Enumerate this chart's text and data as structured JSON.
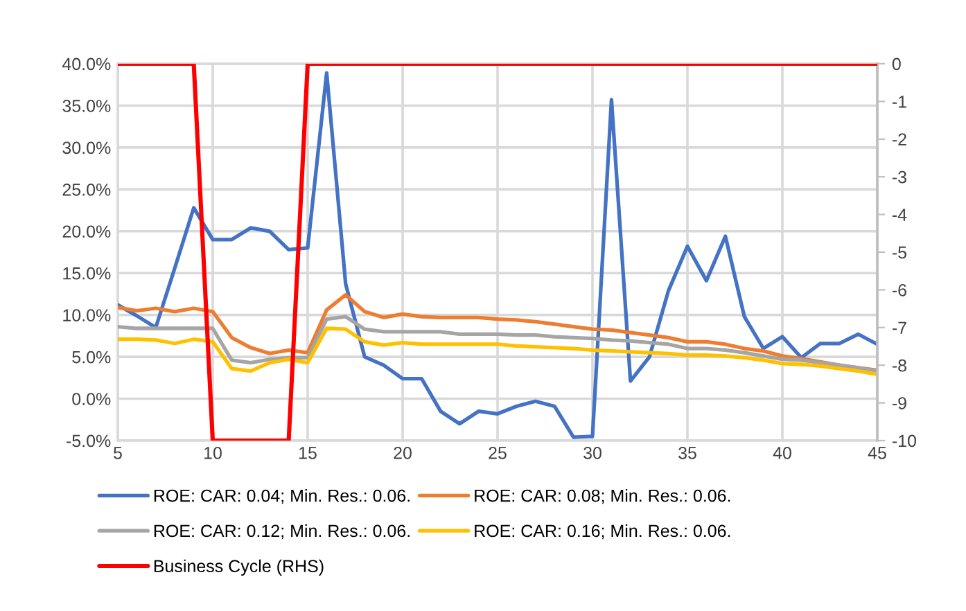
{
  "chart_data": {
    "type": "line",
    "x": [
      5,
      6,
      7,
      8,
      9,
      10,
      11,
      12,
      13,
      14,
      15,
      16,
      17,
      18,
      19,
      20,
      21,
      22,
      23,
      24,
      25,
      26,
      27,
      28,
      29,
      30,
      31,
      32,
      33,
      34,
      35,
      36,
      37,
      38,
      39,
      40,
      41,
      42,
      43,
      44,
      45
    ],
    "series": [
      {
        "name": "ROE: CAR: 0.04; Min. Res.: 0.06.",
        "color": "#4472c4",
        "values": [
          11.2,
          9.9,
          8.5,
          15.6,
          22.8,
          19.0,
          19.0,
          20.4,
          20.0,
          17.8,
          18.0,
          38.9,
          13.7,
          5.0,
          4.0,
          2.4,
          2.4,
          -1.5,
          -3.0,
          -1.5,
          -1.8,
          -0.9,
          -0.3,
          -0.9,
          -4.6,
          -4.5,
          35.7,
          2.1,
          5.0,
          12.9,
          18.2,
          14.1,
          19.4,
          9.8,
          6.0,
          7.4,
          4.9,
          6.6,
          6.6,
          7.7,
          6.5
        ]
      },
      {
        "name": "ROE: CAR: 0.08; Min. Res.: 0.06.",
        "color": "#ed7d31",
        "values": [
          10.9,
          10.5,
          10.8,
          10.4,
          10.8,
          10.4,
          7.3,
          6.1,
          5.4,
          5.8,
          5.5,
          10.6,
          12.4,
          10.4,
          9.7,
          10.1,
          9.8,
          9.7,
          9.7,
          9.7,
          9.5,
          9.4,
          9.2,
          8.9,
          8.6,
          8.3,
          8.2,
          7.9,
          7.6,
          7.3,
          6.8,
          6.8,
          6.5,
          6.0,
          5.7,
          5.1,
          4.8,
          4.4,
          4.0,
          3.7,
          3.4
        ]
      },
      {
        "name": "ROE: CAR: 0.12; Min. Res.: 0.06.",
        "color": "#a5a5a5",
        "values": [
          8.6,
          8.4,
          8.4,
          8.4,
          8.4,
          8.4,
          4.6,
          4.3,
          4.7,
          4.9,
          4.9,
          9.5,
          9.8,
          8.3,
          8.0,
          8.0,
          8.0,
          8.0,
          7.7,
          7.7,
          7.7,
          7.6,
          7.6,
          7.4,
          7.3,
          7.2,
          7.0,
          6.9,
          6.7,
          6.5,
          6.0,
          6.0,
          5.8,
          5.5,
          5.1,
          4.7,
          4.6,
          4.3,
          4.0,
          3.7,
          3.3
        ]
      },
      {
        "name": "ROE: CAR: 0.16; Min. Res.: 0.06.",
        "color": "#ffc000",
        "values": [
          7.1,
          7.1,
          7.0,
          6.6,
          7.1,
          6.8,
          3.6,
          3.3,
          4.3,
          4.7,
          4.3,
          8.4,
          8.3,
          6.8,
          6.4,
          6.7,
          6.5,
          6.5,
          6.5,
          6.5,
          6.5,
          6.3,
          6.2,
          6.1,
          6.0,
          5.8,
          5.7,
          5.6,
          5.5,
          5.4,
          5.2,
          5.2,
          5.1,
          4.9,
          4.6,
          4.2,
          4.1,
          3.9,
          3.6,
          3.3,
          2.9
        ]
      },
      {
        "name": "Business Cycle (RHS)",
        "color": "#ff0000",
        "axis": "y2",
        "values": [
          0,
          0,
          0,
          0,
          0,
          -10,
          -10,
          -10,
          -10,
          -10,
          0,
          0,
          0,
          0,
          0,
          0,
          0,
          0,
          0,
          0,
          0,
          0,
          0,
          0,
          0,
          0,
          0,
          0,
          0,
          0,
          0,
          0,
          0,
          0,
          0,
          0,
          0,
          0,
          0,
          0,
          0
        ]
      }
    ],
    "xlim": [
      5,
      45
    ],
    "xticks": [
      5,
      10,
      15,
      20,
      25,
      30,
      35,
      40,
      45
    ],
    "ylim": [
      -5,
      40
    ],
    "yticks": [
      {
        "value": -5,
        "label": "-5.0%"
      },
      {
        "value": 0,
        "label": "0.0%"
      },
      {
        "value": 5,
        "label": "5.0%"
      },
      {
        "value": 10,
        "label": "10.0%"
      },
      {
        "value": 15,
        "label": "15.0%"
      },
      {
        "value": 20,
        "label": "20.0%"
      },
      {
        "value": 25,
        "label": "25.0%"
      },
      {
        "value": 30,
        "label": "30.0%"
      },
      {
        "value": 35,
        "label": "35.0%"
      },
      {
        "value": 40,
        "label": "40.0%"
      }
    ],
    "y2lim": [
      -10,
      0
    ],
    "y2ticks": [
      -10,
      -9,
      -8,
      -7,
      -6,
      -5,
      -4,
      -3,
      -2,
      -1,
      0
    ],
    "grid": true,
    "legend": "bottom",
    "marker": "none",
    "line_style": "solid"
  }
}
